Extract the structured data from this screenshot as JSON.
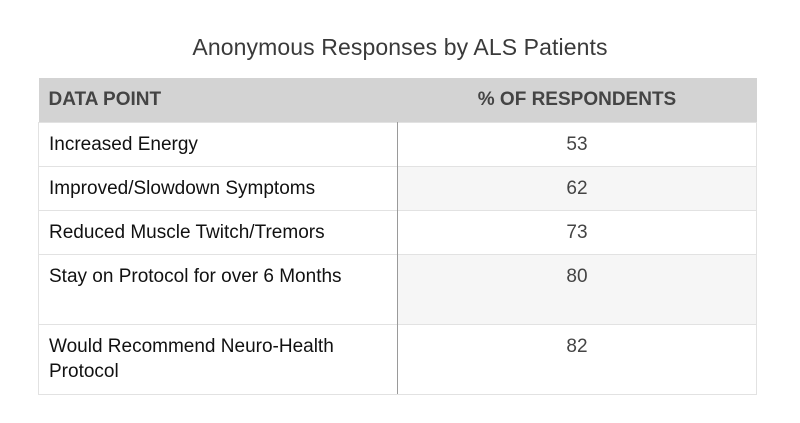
{
  "title": "Anonymous Responses by ALS Patients",
  "header": {
    "col1": "DATA POINT",
    "col2": "% OF RESPONDENTS"
  },
  "rows": [
    {
      "label": "Increased Energy",
      "value": "53"
    },
    {
      "label": "Improved/Slowdown Symptoms",
      "value": "62"
    },
    {
      "label": "Reduced Muscle Twitch/Tremors",
      "value": "73"
    },
    {
      "label": "Stay on Protocol for over 6 Months",
      "value": "80"
    },
    {
      "label": "Would Recommend Neuro-Health Protocol",
      "value": "82"
    }
  ],
  "chart_data": {
    "type": "table",
    "title": "Anonymous Responses by ALS Patients",
    "columns": [
      "DATA POINT",
      "% OF RESPONDENTS"
    ],
    "categories": [
      "Increased Energy",
      "Improved/Slowdown Symptoms",
      "Reduced Muscle Twitch/Tremors",
      "Stay on Protocol for over 6 Months",
      "Would Recommend Neuro-Health Protocol"
    ],
    "values": [
      53,
      62,
      73,
      80,
      82
    ]
  }
}
